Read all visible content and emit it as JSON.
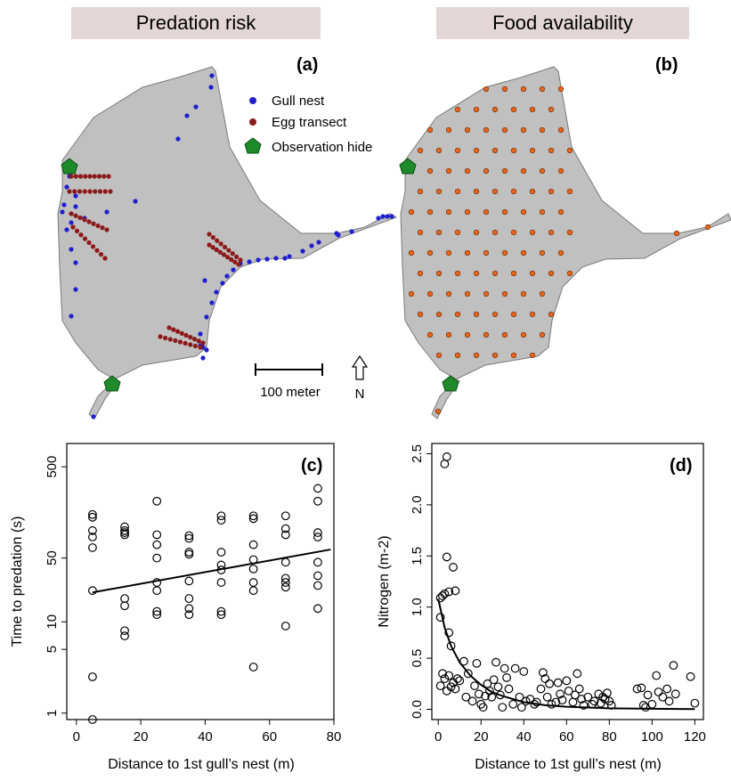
{
  "headers": {
    "left": "Predation risk",
    "right": "Food availability"
  },
  "maps": {
    "panel_a": {
      "label": "(a)",
      "legend": [
        {
          "label": "Gull nest",
          "color": "#1f1fd0",
          "marker": "circle"
        },
        {
          "label": "Egg transect",
          "color": "#8b1a1a",
          "marker": "circle"
        },
        {
          "label": "Observation hide",
          "color": "#1f8a2a",
          "marker": "pentagon"
        }
      ],
      "scale_bar_label": "100 meter",
      "north_label": "N"
    },
    "panel_b": {
      "label": "(b)",
      "sample_color": "#e8641c"
    },
    "land_color": "#c0c0c0"
  },
  "chart_data": [
    {
      "type": "scatter",
      "panel_label": "(c)",
      "xlabel": "Distance to 1st gull’s nest (m)",
      "ylabel": "Time to predation (s)",
      "xlim": [
        -3,
        80
      ],
      "ylim": [
        0.85,
        900
      ],
      "yscale": "log",
      "xticks": [
        0,
        20,
        40,
        60,
        80
      ],
      "yticks": [
        1,
        5,
        10,
        50,
        500
      ],
      "trend": {
        "x": [
          5,
          79
        ],
        "y": [
          21,
          62
        ]
      },
      "points": [
        {
          "x": 5,
          "y": 0.8
        },
        {
          "x": 5,
          "y": 2.5
        },
        {
          "x": 5,
          "y": 22
        },
        {
          "x": 5,
          "y": 65
        },
        {
          "x": 5,
          "y": 85
        },
        {
          "x": 5,
          "y": 100
        },
        {
          "x": 5,
          "y": 140
        },
        {
          "x": 5,
          "y": 150
        },
        {
          "x": 15,
          "y": 7
        },
        {
          "x": 15,
          "y": 8
        },
        {
          "x": 15,
          "y": 15
        },
        {
          "x": 15,
          "y": 18
        },
        {
          "x": 15,
          "y": 90
        },
        {
          "x": 15,
          "y": 95
        },
        {
          "x": 15,
          "y": 100
        },
        {
          "x": 15,
          "y": 110
        },
        {
          "x": 25,
          "y": 12
        },
        {
          "x": 25,
          "y": 13
        },
        {
          "x": 25,
          "y": 22
        },
        {
          "x": 25,
          "y": 27
        },
        {
          "x": 25,
          "y": 50
        },
        {
          "x": 25,
          "y": 70
        },
        {
          "x": 25,
          "y": 90
        },
        {
          "x": 25,
          "y": 210
        },
        {
          "x": 35,
          "y": 12
        },
        {
          "x": 35,
          "y": 14
        },
        {
          "x": 35,
          "y": 18
        },
        {
          "x": 35,
          "y": 28
        },
        {
          "x": 35,
          "y": 55
        },
        {
          "x": 35,
          "y": 58
        },
        {
          "x": 35,
          "y": 82
        },
        {
          "x": 35,
          "y": 88
        },
        {
          "x": 45,
          "y": 12
        },
        {
          "x": 45,
          "y": 13
        },
        {
          "x": 45,
          "y": 27
        },
        {
          "x": 45,
          "y": 37
        },
        {
          "x": 45,
          "y": 42
        },
        {
          "x": 45,
          "y": 58
        },
        {
          "x": 45,
          "y": 130
        },
        {
          "x": 45,
          "y": 145
        },
        {
          "x": 55,
          "y": 3.2
        },
        {
          "x": 55,
          "y": 22
        },
        {
          "x": 55,
          "y": 27
        },
        {
          "x": 55,
          "y": 38
        },
        {
          "x": 55,
          "y": 48
        },
        {
          "x": 55,
          "y": 70
        },
        {
          "x": 55,
          "y": 135
        },
        {
          "x": 55,
          "y": 145
        },
        {
          "x": 65,
          "y": 9
        },
        {
          "x": 65,
          "y": 24
        },
        {
          "x": 65,
          "y": 27
        },
        {
          "x": 65,
          "y": 30
        },
        {
          "x": 65,
          "y": 45
        },
        {
          "x": 65,
          "y": 90
        },
        {
          "x": 65,
          "y": 105
        },
        {
          "x": 65,
          "y": 145
        },
        {
          "x": 75,
          "y": 14
        },
        {
          "x": 75,
          "y": 25
        },
        {
          "x": 75,
          "y": 32
        },
        {
          "x": 75,
          "y": 45
        },
        {
          "x": 75,
          "y": 85
        },
        {
          "x": 75,
          "y": 95
        },
        {
          "x": 75,
          "y": 210
        },
        {
          "x": 75,
          "y": 290
        }
      ]
    },
    {
      "type": "scatter",
      "panel_label": "(d)",
      "xlabel": "Distance to 1st gull’s nest (m)",
      "ylabel": "Nitrogen (m-2)",
      "xlim": [
        -3,
        124
      ],
      "ylim": [
        -0.1,
        2.6
      ],
      "xticks": [
        0,
        20,
        40,
        60,
        80,
        100,
        120
      ],
      "yticks": [
        0.0,
        0.5,
        1.0,
        1.5,
        2.0,
        2.5
      ],
      "ytick_labels": [
        "0.0",
        "0.5",
        "1.0",
        "1.5",
        "2.0",
        "2.5"
      ],
      "trend": {
        "x": [
          0,
          3,
          6,
          10,
          15,
          20,
          25,
          30,
          40,
          50,
          60,
          80,
          100,
          120
        ],
        "y": [
          1.08,
          0.8,
          0.62,
          0.46,
          0.33,
          0.24,
          0.17,
          0.13,
          0.07,
          0.04,
          0.025,
          0.01,
          0.005,
          0.003
        ]
      },
      "points": [
        {
          "x": 3,
          "y": 2.4
        },
        {
          "x": 4,
          "y": 2.47
        },
        {
          "x": 4,
          "y": 1.49
        },
        {
          "x": 7,
          "y": 1.39
        },
        {
          "x": 3,
          "y": 1.13
        },
        {
          "x": 5,
          "y": 1.15
        },
        {
          "x": 8,
          "y": 1.16
        },
        {
          "x": 1,
          "y": 1.09
        },
        {
          "x": 2,
          "y": 1.11
        },
        {
          "x": 1,
          "y": 0.9
        },
        {
          "x": 5,
          "y": 0.75
        },
        {
          "x": 6,
          "y": 0.62
        },
        {
          "x": 1,
          "y": 0.23
        },
        {
          "x": 2,
          "y": 0.35
        },
        {
          "x": 3,
          "y": 0.3
        },
        {
          "x": 4,
          "y": 0.18
        },
        {
          "x": 5,
          "y": 0.33
        },
        {
          "x": 6,
          "y": 0.22
        },
        {
          "x": 7,
          "y": 0.26
        },
        {
          "x": 8,
          "y": 0.2
        },
        {
          "x": 9,
          "y": 0.3
        },
        {
          "x": 10,
          "y": 0.28
        },
        {
          "x": 12,
          "y": 0.47
        },
        {
          "x": 13,
          "y": 0.12
        },
        {
          "x": 14,
          "y": 0.35
        },
        {
          "x": 16,
          "y": 0.08
        },
        {
          "x": 17,
          "y": 0.23
        },
        {
          "x": 18,
          "y": 0.45
        },
        {
          "x": 19,
          "y": 0.15
        },
        {
          "x": 20,
          "y": 0.05
        },
        {
          "x": 21,
          "y": 0.02
        },
        {
          "x": 22,
          "y": 0.13
        },
        {
          "x": 23,
          "y": 0.25
        },
        {
          "x": 24,
          "y": 0.18
        },
        {
          "x": 25,
          "y": 0.12
        },
        {
          "x": 26,
          "y": 0.29
        },
        {
          "x": 27,
          "y": 0.46
        },
        {
          "x": 28,
          "y": 0.22
        },
        {
          "x": 29,
          "y": 0.14
        },
        {
          "x": 30,
          "y": 0.02
        },
        {
          "x": 31,
          "y": 0.4
        },
        {
          "x": 32,
          "y": 0.31
        },
        {
          "x": 33,
          "y": 0.2
        },
        {
          "x": 35,
          "y": 0.05
        },
        {
          "x": 36,
          "y": 0.4
        },
        {
          "x": 38,
          "y": 0.12
        },
        {
          "x": 39,
          "y": 0.02
        },
        {
          "x": 40,
          "y": 0.37
        },
        {
          "x": 41,
          "y": 0.08
        },
        {
          "x": 43,
          "y": 0.1
        },
        {
          "x": 45,
          "y": 0.05
        },
        {
          "x": 46,
          "y": 0.07
        },
        {
          "x": 48,
          "y": 0.2
        },
        {
          "x": 49,
          "y": 0.36
        },
        {
          "x": 50,
          "y": 0.3
        },
        {
          "x": 51,
          "y": 0.12
        },
        {
          "x": 52,
          "y": 0.25
        },
        {
          "x": 53,
          "y": 0.05
        },
        {
          "x": 55,
          "y": 0.07
        },
        {
          "x": 56,
          "y": 0.26
        },
        {
          "x": 57,
          "y": 0.15
        },
        {
          "x": 58,
          "y": 0.09
        },
        {
          "x": 60,
          "y": 0.28
        },
        {
          "x": 61,
          "y": 0.18
        },
        {
          "x": 63,
          "y": 0.07
        },
        {
          "x": 64,
          "y": 0.14
        },
        {
          "x": 65,
          "y": 0.35
        },
        {
          "x": 66,
          "y": 0.2
        },
        {
          "x": 67,
          "y": 0.1
        },
        {
          "x": 68,
          "y": 0.04
        },
        {
          "x": 70,
          "y": 0.12
        },
        {
          "x": 72,
          "y": 0.05
        },
        {
          "x": 73,
          "y": 0.08
        },
        {
          "x": 75,
          "y": 0.15
        },
        {
          "x": 76,
          "y": 0.06
        },
        {
          "x": 77,
          "y": 0.12
        },
        {
          "x": 78,
          "y": 0.1
        },
        {
          "x": 79,
          "y": 0.16
        },
        {
          "x": 80,
          "y": 0.08
        },
        {
          "x": 81,
          "y": 0.04
        },
        {
          "x": 93,
          "y": 0.2
        },
        {
          "x": 95,
          "y": 0.21
        },
        {
          "x": 96,
          "y": 0.04
        },
        {
          "x": 97,
          "y": 0.02
        },
        {
          "x": 98,
          "y": 0.14
        },
        {
          "x": 100,
          "y": 0.05
        },
        {
          "x": 102,
          "y": 0.33
        },
        {
          "x": 103,
          "y": 0.17
        },
        {
          "x": 105,
          "y": 0.12
        },
        {
          "x": 107,
          "y": 0.2
        },
        {
          "x": 108,
          "y": 0.08
        },
        {
          "x": 110,
          "y": 0.43
        },
        {
          "x": 111,
          "y": 0.15
        },
        {
          "x": 118,
          "y": 0.32
        },
        {
          "x": 120,
          "y": 0.06
        }
      ]
    }
  ]
}
